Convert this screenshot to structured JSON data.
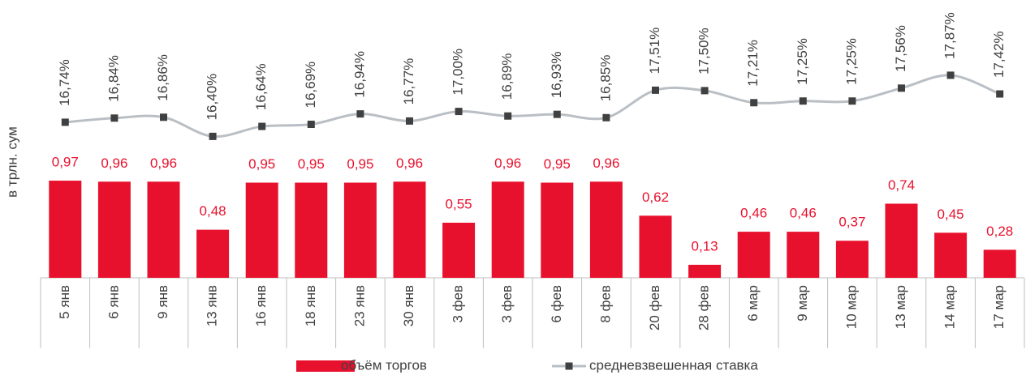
{
  "chart_data": {
    "type": "combo",
    "y_label": "в трлн. сум",
    "categories": [
      "5 янв",
      "6 янв",
      "9 янв",
      "13 янв",
      "16 янв",
      "18 янв",
      "23 янв",
      "30 янв",
      "3 фев",
      "3 фев",
      "6 фев",
      "8 фев",
      "20 фев",
      "28 фев",
      "6 мар",
      "9 мар",
      "10 мар",
      "13 мар",
      "14 мар",
      "17 мар"
    ],
    "series": [
      {
        "name": "объём торгов",
        "type": "bar",
        "color": "#e8112d",
        "label_color": "#e8112d",
        "values": [
          0.97,
          0.96,
          0.96,
          0.48,
          0.95,
          0.95,
          0.95,
          0.96,
          0.55,
          0.96,
          0.95,
          0.96,
          0.62,
          0.13,
          0.46,
          0.46,
          0.37,
          0.74,
          0.45,
          0.28
        ],
        "value_labels": [
          "0,97",
          "0,96",
          "0,96",
          "0,48",
          "0,95",
          "0,95",
          "0,95",
          "0,96",
          "0,55",
          "0,96",
          "0,95",
          "0,96",
          "0,62",
          "0,13",
          "0,46",
          "0,46",
          "0,37",
          "0,74",
          "0,45",
          "0,28"
        ]
      },
      {
        "name": "средневзвешенная ставка",
        "type": "line",
        "axis": "y2",
        "color": "#b9bfc4",
        "marker_color": "#404040",
        "label_color": "#404040",
        "values": [
          16.74,
          16.84,
          16.86,
          16.4,
          16.64,
          16.69,
          16.94,
          16.77,
          17.0,
          16.89,
          16.93,
          16.85,
          17.51,
          17.5,
          17.21,
          17.25,
          17.25,
          17.56,
          17.87,
          17.42
        ],
        "value_labels": [
          "16,74%",
          "16,84%",
          "16,86%",
          "16,40%",
          "16,64%",
          "16,69%",
          "16,94%",
          "16,77%",
          "17,00%",
          "16,89%",
          "16,93%",
          "16,85%",
          "17,51%",
          "17,50%",
          "17,21%",
          "17,25%",
          "17,25%",
          "17,56%",
          "17,87%",
          "17,42%"
        ]
      }
    ],
    "ylim": [
      0,
      2.45
    ],
    "y2lim": [
      13,
      18.9
    ]
  }
}
